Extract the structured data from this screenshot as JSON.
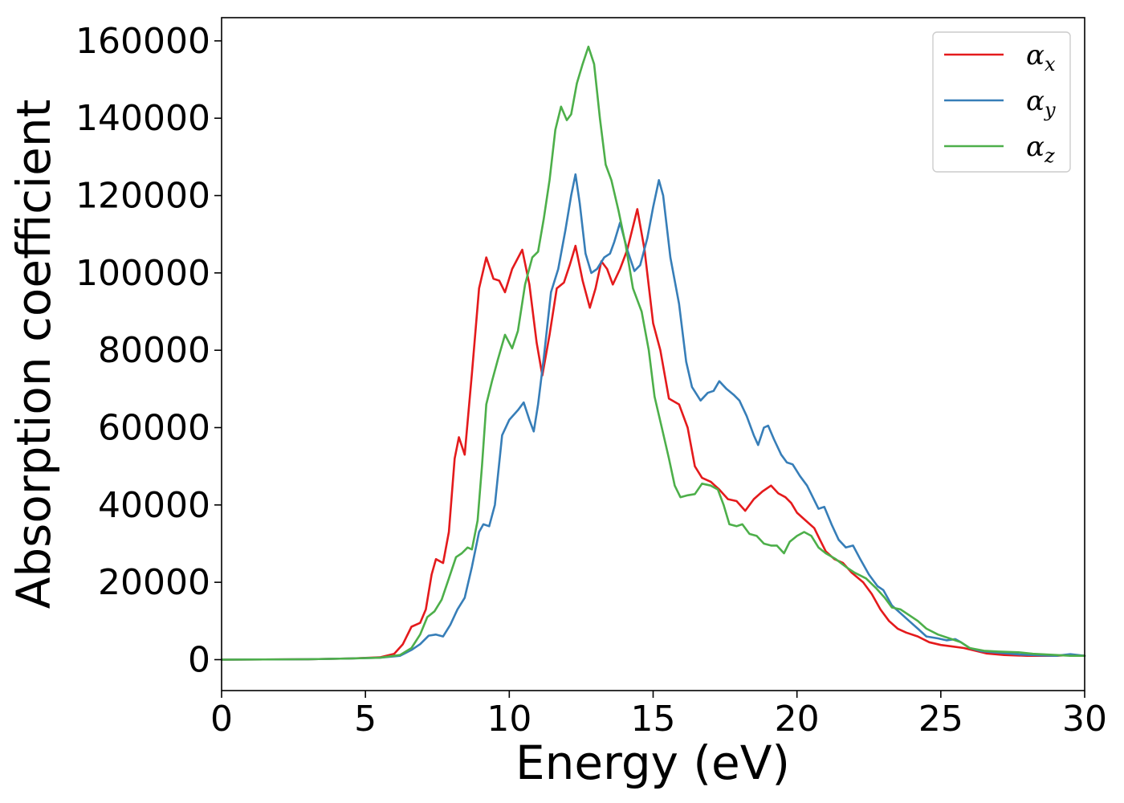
{
  "chart_data": {
    "type": "line",
    "title": "",
    "xlabel": "Energy (eV)",
    "ylabel": "Absorption coefficient",
    "xlim": [
      0,
      30
    ],
    "ylim": [
      -8000,
      166000
    ],
    "xticks": [
      0,
      5,
      10,
      15,
      20,
      25,
      30
    ],
    "yticks": [
      0,
      20000,
      40000,
      60000,
      80000,
      100000,
      120000,
      140000,
      160000
    ],
    "grid": false,
    "legend": "top-right",
    "series": [
      {
        "name_base": "α",
        "name_sub": "x",
        "color": "#e41a1c",
        "points": [
          [
            0,
            0
          ],
          [
            3,
            100
          ],
          [
            4.5,
            300
          ],
          [
            5.5,
            600
          ],
          [
            6.0,
            1500
          ],
          [
            6.3,
            4000
          ],
          [
            6.6,
            8500
          ],
          [
            6.9,
            9500
          ],
          [
            7.1,
            13000
          ],
          [
            7.3,
            22000
          ],
          [
            7.45,
            26000
          ],
          [
            7.7,
            25000
          ],
          [
            7.9,
            33000
          ],
          [
            8.1,
            52000
          ],
          [
            8.25,
            57500
          ],
          [
            8.45,
            53000
          ],
          [
            8.7,
            74000
          ],
          [
            8.95,
            96000
          ],
          [
            9.2,
            104000
          ],
          [
            9.45,
            98500
          ],
          [
            9.65,
            98000
          ],
          [
            9.85,
            95000
          ],
          [
            10.1,
            101000
          ],
          [
            10.45,
            106000
          ],
          [
            10.7,
            97000
          ],
          [
            10.95,
            82000
          ],
          [
            11.15,
            73500
          ],
          [
            11.4,
            84000
          ],
          [
            11.65,
            96000
          ],
          [
            11.9,
            97500
          ],
          [
            12.1,
            102000
          ],
          [
            12.3,
            107000
          ],
          [
            12.55,
            98000
          ],
          [
            12.8,
            91000
          ],
          [
            13.0,
            96000
          ],
          [
            13.2,
            103000
          ],
          [
            13.4,
            101000
          ],
          [
            13.6,
            97000
          ],
          [
            13.85,
            101000
          ],
          [
            14.1,
            106000
          ],
          [
            14.45,
            116500
          ],
          [
            14.7,
            106000
          ],
          [
            15.0,
            87000
          ],
          [
            15.25,
            80000
          ],
          [
            15.55,
            67500
          ],
          [
            15.9,
            66000
          ],
          [
            16.2,
            60000
          ],
          [
            16.45,
            50000
          ],
          [
            16.7,
            47000
          ],
          [
            17.0,
            46000
          ],
          [
            17.3,
            44000
          ],
          [
            17.6,
            41500
          ],
          [
            17.9,
            41000
          ],
          [
            18.2,
            38500
          ],
          [
            18.5,
            41500
          ],
          [
            18.8,
            43500
          ],
          [
            19.1,
            45000
          ],
          [
            19.35,
            43000
          ],
          [
            19.6,
            42000
          ],
          [
            19.8,
            40500
          ],
          [
            20.0,
            38000
          ],
          [
            20.3,
            36000
          ],
          [
            20.6,
            34000
          ],
          [
            20.8,
            31000
          ],
          [
            21.0,
            28000
          ],
          [
            21.3,
            26000
          ],
          [
            21.6,
            25000
          ],
          [
            21.9,
            22500
          ],
          [
            22.3,
            20000
          ],
          [
            22.6,
            17000
          ],
          [
            22.9,
            13000
          ],
          [
            23.2,
            10000
          ],
          [
            23.5,
            8000
          ],
          [
            23.8,
            7000
          ],
          [
            24.2,
            6000
          ],
          [
            24.6,
            4500
          ],
          [
            25.0,
            3800
          ],
          [
            25.4,
            3400
          ],
          [
            25.8,
            3000
          ],
          [
            26.2,
            2300
          ],
          [
            26.6,
            1600
          ],
          [
            27.2,
            1200
          ],
          [
            28.0,
            1000
          ],
          [
            29.0,
            1000
          ],
          [
            29.5,
            1200
          ],
          [
            30,
            1000
          ]
        ]
      },
      {
        "name_base": "α",
        "name_sub": "y",
        "color": "#377eb8",
        "points": [
          [
            0,
            0
          ],
          [
            3,
            100
          ],
          [
            4.5,
            300
          ],
          [
            5.5,
            500
          ],
          [
            6.2,
            1000
          ],
          [
            6.6,
            2500
          ],
          [
            6.9,
            4000
          ],
          [
            7.2,
            6200
          ],
          [
            7.45,
            6500
          ],
          [
            7.7,
            6000
          ],
          [
            7.95,
            9000
          ],
          [
            8.2,
            13000
          ],
          [
            8.45,
            16000
          ],
          [
            8.7,
            24000
          ],
          [
            8.95,
            33000
          ],
          [
            9.1,
            35000
          ],
          [
            9.3,
            34500
          ],
          [
            9.5,
            40000
          ],
          [
            9.75,
            58000
          ],
          [
            10.0,
            62000
          ],
          [
            10.3,
            64500
          ],
          [
            10.5,
            66500
          ],
          [
            10.7,
            62000
          ],
          [
            10.85,
            59000
          ],
          [
            11.0,
            66000
          ],
          [
            11.2,
            78000
          ],
          [
            11.45,
            95000
          ],
          [
            11.7,
            101000
          ],
          [
            11.95,
            111000
          ],
          [
            12.15,
            120000
          ],
          [
            12.3,
            125500
          ],
          [
            12.45,
            118000
          ],
          [
            12.65,
            105000
          ],
          [
            12.85,
            100000
          ],
          [
            13.05,
            101000
          ],
          [
            13.3,
            104000
          ],
          [
            13.5,
            105000
          ],
          [
            13.65,
            108000
          ],
          [
            13.85,
            113000
          ],
          [
            14.1,
            106000
          ],
          [
            14.35,
            100500
          ],
          [
            14.55,
            102000
          ],
          [
            14.8,
            109000
          ],
          [
            15.0,
            117000
          ],
          [
            15.2,
            124000
          ],
          [
            15.35,
            120000
          ],
          [
            15.6,
            104000
          ],
          [
            15.9,
            92000
          ],
          [
            16.15,
            77000
          ],
          [
            16.35,
            70500
          ],
          [
            16.65,
            67000
          ],
          [
            16.9,
            69000
          ],
          [
            17.1,
            69500
          ],
          [
            17.3,
            72000
          ],
          [
            17.55,
            70000
          ],
          [
            17.8,
            68500
          ],
          [
            18.0,
            67000
          ],
          [
            18.25,
            63000
          ],
          [
            18.5,
            58000
          ],
          [
            18.65,
            55500
          ],
          [
            18.85,
            60000
          ],
          [
            19.0,
            60500
          ],
          [
            19.2,
            57000
          ],
          [
            19.45,
            53000
          ],
          [
            19.65,
            51000
          ],
          [
            19.85,
            50500
          ],
          [
            20.1,
            47500
          ],
          [
            20.35,
            45000
          ],
          [
            20.55,
            42000
          ],
          [
            20.75,
            39000
          ],
          [
            20.95,
            39500
          ],
          [
            21.2,
            35000
          ],
          [
            21.45,
            31000
          ],
          [
            21.7,
            29000
          ],
          [
            21.95,
            29500
          ],
          [
            22.2,
            26000
          ],
          [
            22.5,
            22000
          ],
          [
            22.8,
            19000
          ],
          [
            23.0,
            18000
          ],
          [
            23.3,
            14000
          ],
          [
            23.6,
            12000
          ],
          [
            23.9,
            10000
          ],
          [
            24.2,
            8000
          ],
          [
            24.5,
            6000
          ],
          [
            24.9,
            5500
          ],
          [
            25.2,
            5000
          ],
          [
            25.5,
            5300
          ],
          [
            25.7,
            4500
          ],
          [
            26.0,
            3000
          ],
          [
            26.4,
            2200
          ],
          [
            27.0,
            1800
          ],
          [
            27.8,
            1300
          ],
          [
            28.5,
            1100
          ],
          [
            29.0,
            1000
          ],
          [
            29.5,
            1400
          ],
          [
            30,
            1000
          ]
        ]
      },
      {
        "name_base": "α",
        "name_sub": "z",
        "color": "#4daf4a",
        "points": [
          [
            0,
            0
          ],
          [
            3,
            100
          ],
          [
            4.5,
            300
          ],
          [
            5.5,
            500
          ],
          [
            6.2,
            1200
          ],
          [
            6.6,
            3000
          ],
          [
            6.9,
            6500
          ],
          [
            7.15,
            11000
          ],
          [
            7.4,
            12500
          ],
          [
            7.65,
            15500
          ],
          [
            7.9,
            21000
          ],
          [
            8.15,
            26500
          ],
          [
            8.35,
            27500
          ],
          [
            8.55,
            29000
          ],
          [
            8.7,
            28500
          ],
          [
            8.9,
            36000
          ],
          [
            9.05,
            50000
          ],
          [
            9.2,
            66000
          ],
          [
            9.4,
            72000
          ],
          [
            9.6,
            77500
          ],
          [
            9.85,
            84000
          ],
          [
            10.1,
            80500
          ],
          [
            10.3,
            85000
          ],
          [
            10.55,
            97000
          ],
          [
            10.8,
            104000
          ],
          [
            11.0,
            105500
          ],
          [
            11.2,
            114000
          ],
          [
            11.4,
            124000
          ],
          [
            11.6,
            137000
          ],
          [
            11.8,
            143000
          ],
          [
            12.0,
            139500
          ],
          [
            12.15,
            141000
          ],
          [
            12.35,
            149000
          ],
          [
            12.55,
            154000
          ],
          [
            12.75,
            158500
          ],
          [
            12.95,
            154000
          ],
          [
            13.15,
            140000
          ],
          [
            13.35,
            128000
          ],
          [
            13.55,
            124000
          ],
          [
            13.8,
            116000
          ],
          [
            14.05,
            107000
          ],
          [
            14.3,
            96000
          ],
          [
            14.6,
            90000
          ],
          [
            14.85,
            80000
          ],
          [
            15.05,
            68000
          ],
          [
            15.3,
            60000
          ],
          [
            15.55,
            52000
          ],
          [
            15.75,
            45000
          ],
          [
            15.95,
            42000
          ],
          [
            16.2,
            42500
          ],
          [
            16.45,
            42800
          ],
          [
            16.7,
            45500
          ],
          [
            17.0,
            45000
          ],
          [
            17.25,
            44000
          ],
          [
            17.45,
            40000
          ],
          [
            17.65,
            35000
          ],
          [
            17.9,
            34500
          ],
          [
            18.1,
            35000
          ],
          [
            18.35,
            32500
          ],
          [
            18.6,
            32000
          ],
          [
            18.85,
            30000
          ],
          [
            19.1,
            29500
          ],
          [
            19.3,
            29500
          ],
          [
            19.55,
            27500
          ],
          [
            19.75,
            30500
          ],
          [
            20.0,
            32000
          ],
          [
            20.25,
            33000
          ],
          [
            20.5,
            32000
          ],
          [
            20.75,
            29000
          ],
          [
            21.0,
            27500
          ],
          [
            21.35,
            26000
          ],
          [
            21.7,
            24000
          ],
          [
            22.0,
            22500
          ],
          [
            22.4,
            21000
          ],
          [
            22.75,
            18500
          ],
          [
            23.05,
            16000
          ],
          [
            23.3,
            13500
          ],
          [
            23.6,
            13000
          ],
          [
            23.9,
            11500
          ],
          [
            24.2,
            10000
          ],
          [
            24.5,
            8000
          ],
          [
            24.9,
            6500
          ],
          [
            25.3,
            5500
          ],
          [
            25.7,
            4500
          ],
          [
            26.0,
            3000
          ],
          [
            26.5,
            2300
          ],
          [
            27.0,
            2100
          ],
          [
            27.7,
            1900
          ],
          [
            28.2,
            1500
          ],
          [
            29.0,
            1200
          ],
          [
            29.5,
            1000
          ],
          [
            30,
            1000
          ]
        ]
      }
    ]
  }
}
